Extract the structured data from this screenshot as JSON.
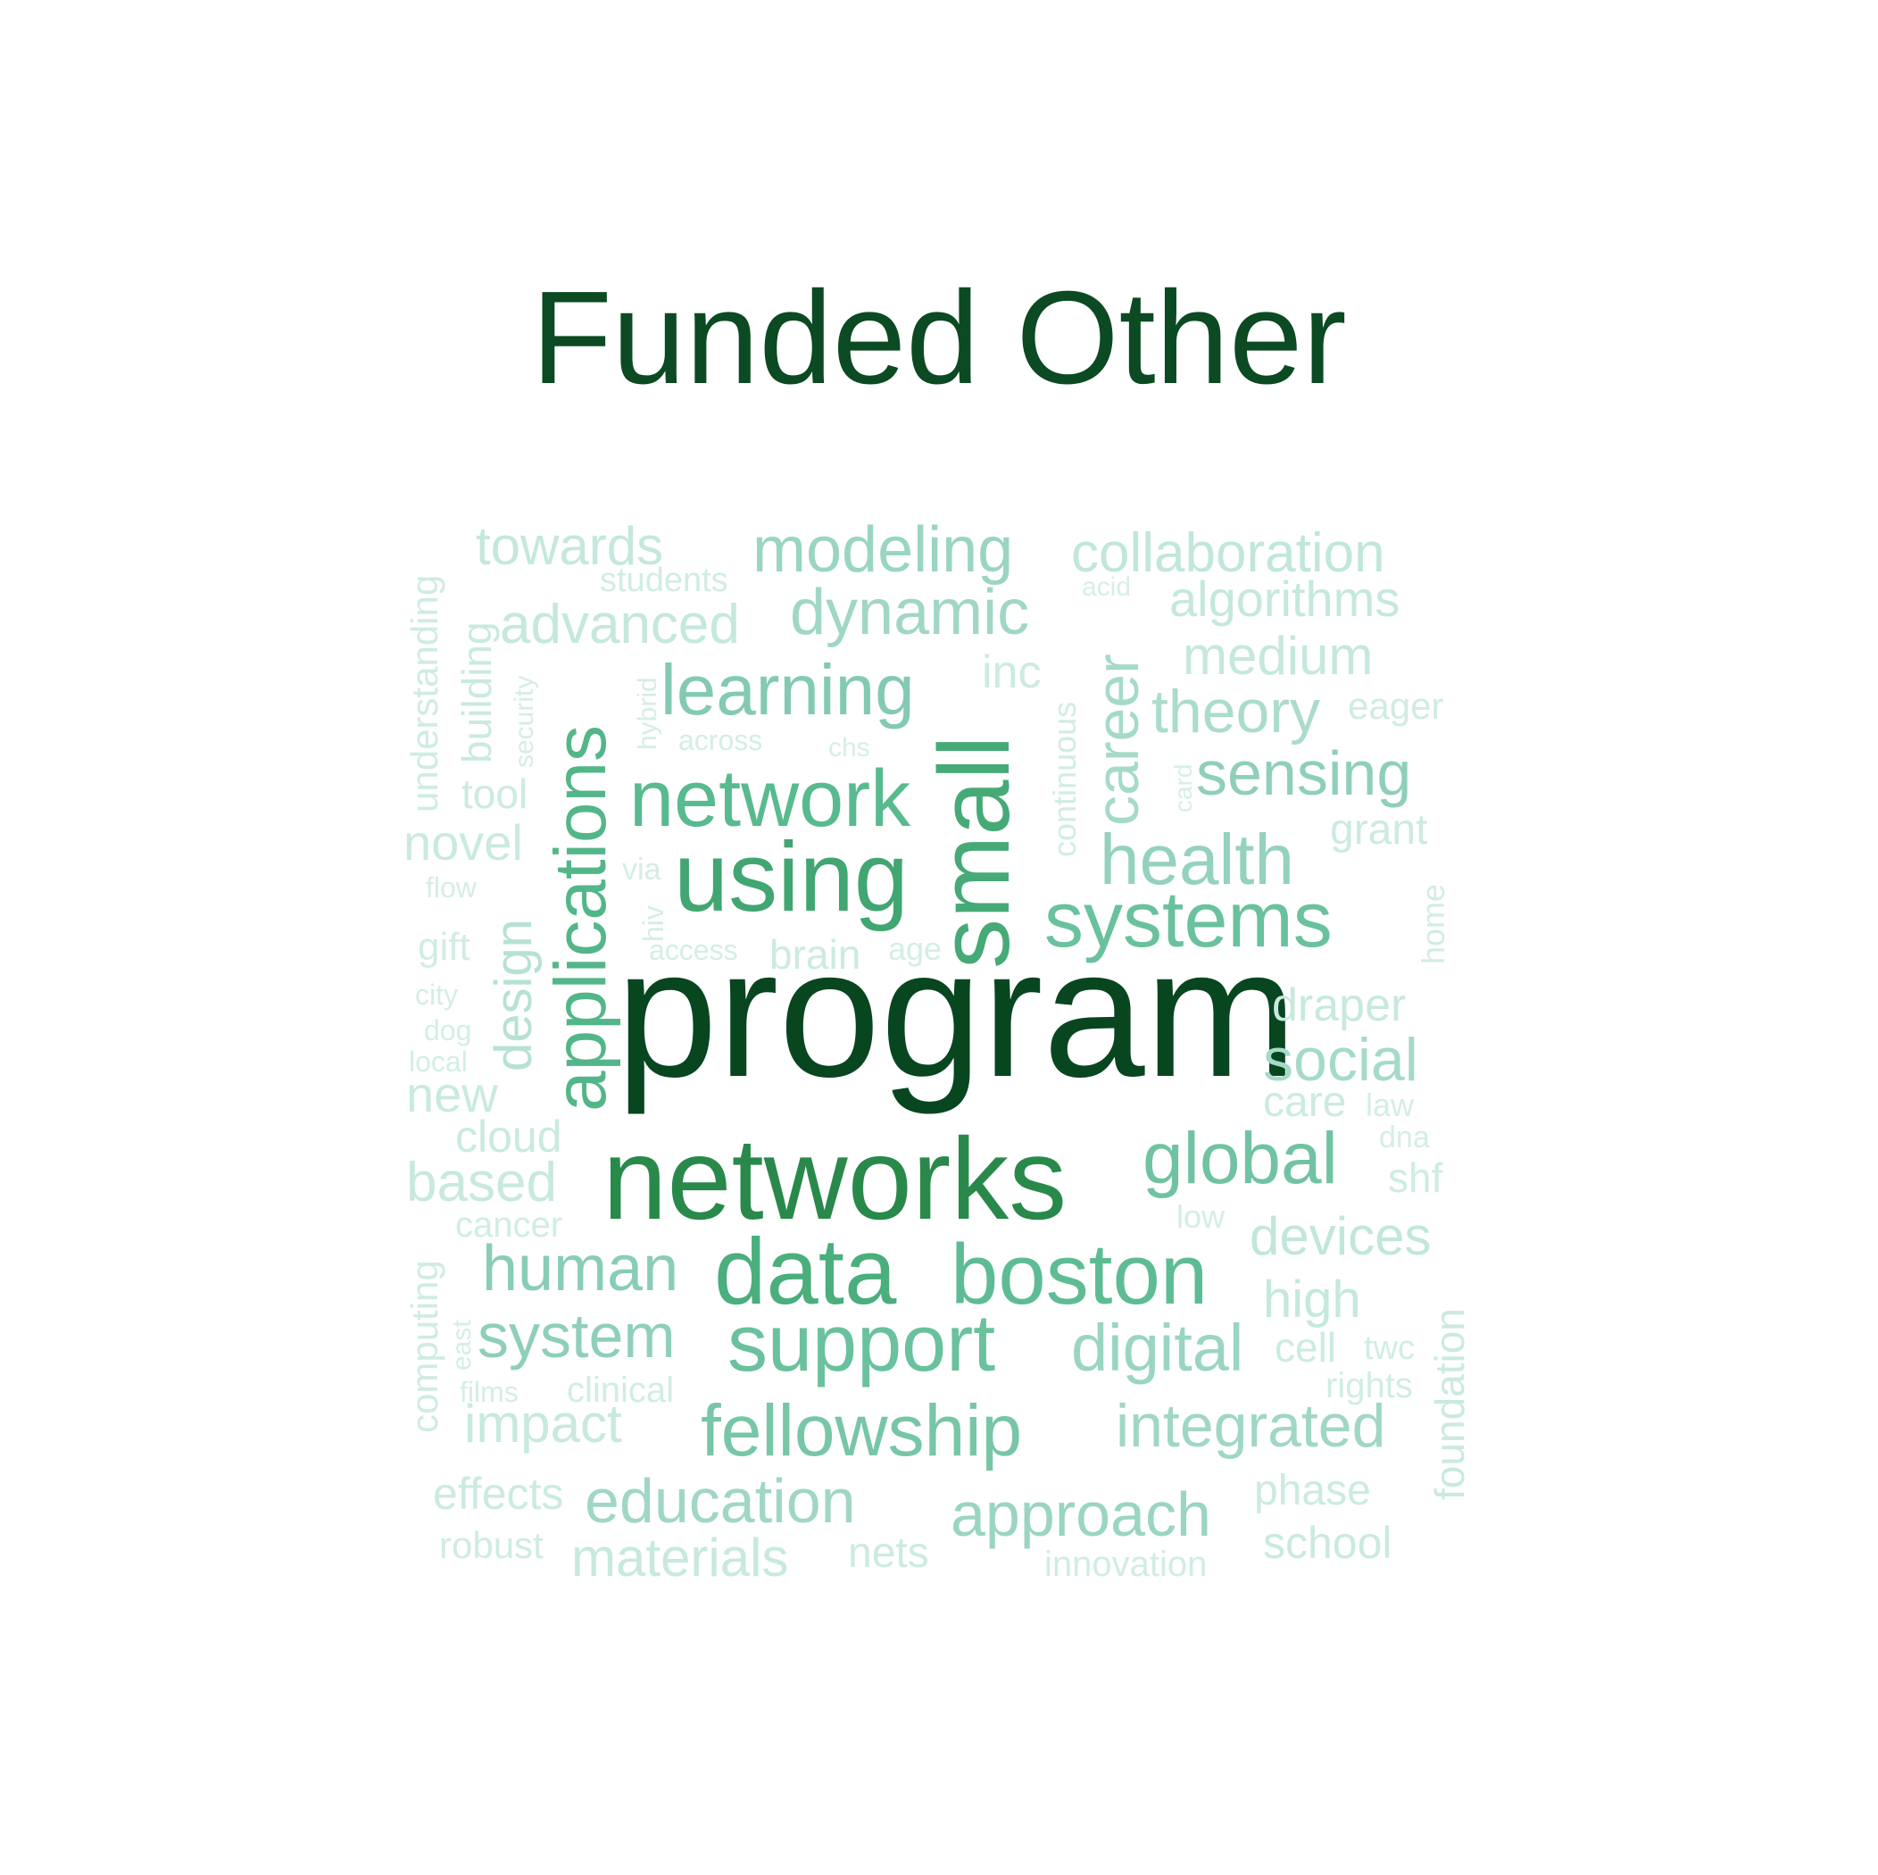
{
  "title": "Funded Other",
  "words": [
    {
      "text": "program",
      "weight": 1.0
    },
    {
      "text": "networks",
      "weight": 0.86
    },
    {
      "text": "using",
      "weight": 0.72
    },
    {
      "text": "small",
      "weight": 0.7
    },
    {
      "text": "data",
      "weight": 0.68
    },
    {
      "text": "applications",
      "weight": 0.64
    },
    {
      "text": "network",
      "weight": 0.62
    },
    {
      "text": "boston",
      "weight": 0.6
    },
    {
      "text": "support",
      "weight": 0.56
    },
    {
      "text": "systems",
      "weight": 0.56
    },
    {
      "text": "global",
      "weight": 0.54
    },
    {
      "text": "fellowship",
      "weight": 0.52
    },
    {
      "text": "learning",
      "weight": 0.48
    },
    {
      "text": "human",
      "weight": 0.46
    },
    {
      "text": "system",
      "weight": 0.44
    },
    {
      "text": "sensing",
      "weight": 0.44
    },
    {
      "text": "health",
      "weight": 0.42
    },
    {
      "text": "digital",
      "weight": 0.4
    },
    {
      "text": "approach",
      "weight": 0.4
    },
    {
      "text": "modeling",
      "weight": 0.4
    },
    {
      "text": "integrated",
      "weight": 0.38
    },
    {
      "text": "dynamic",
      "weight": 0.38
    },
    {
      "text": "education",
      "weight": 0.38
    },
    {
      "text": "career",
      "weight": 0.36
    },
    {
      "text": "social",
      "weight": 0.36
    },
    {
      "text": "theory",
      "weight": 0.34
    },
    {
      "text": "design",
      "weight": 0.3
    },
    {
      "text": "devices",
      "weight": 0.26
    },
    {
      "text": "collaboration",
      "weight": 0.26
    },
    {
      "text": "advanced",
      "weight": 0.24
    },
    {
      "text": "medium",
      "weight": 0.24
    },
    {
      "text": "algorithms",
      "weight": 0.24
    },
    {
      "text": "towards",
      "weight": 0.24
    },
    {
      "text": "high",
      "weight": 0.24
    },
    {
      "text": "impact",
      "weight": 0.22
    },
    {
      "text": "draper",
      "weight": 0.22
    },
    {
      "text": "based",
      "weight": 0.22
    },
    {
      "text": "materials",
      "weight": 0.22
    },
    {
      "text": "school",
      "weight": 0.2
    },
    {
      "text": "novel",
      "weight": 0.2
    },
    {
      "text": "new",
      "weight": 0.2
    },
    {
      "text": "cloud",
      "weight": 0.2
    },
    {
      "text": "building",
      "weight": 0.2
    },
    {
      "text": "foundation",
      "weight": 0.2
    },
    {
      "text": "phase",
      "weight": 0.18
    },
    {
      "text": "grant",
      "weight": 0.18
    },
    {
      "text": "care",
      "weight": 0.18
    },
    {
      "text": "effects",
      "weight": 0.18
    },
    {
      "text": "tool",
      "weight": 0.18
    },
    {
      "text": "inc",
      "weight": 0.18
    },
    {
      "text": "brain",
      "weight": 0.18
    },
    {
      "text": "cell",
      "weight": 0.18
    },
    {
      "text": "nets",
      "weight": 0.18
    },
    {
      "text": "shf",
      "weight": 0.16
    },
    {
      "text": "understanding",
      "weight": 0.16
    },
    {
      "text": "computing",
      "weight": 0.16
    },
    {
      "text": "robust",
      "weight": 0.16
    },
    {
      "text": "eager",
      "weight": 0.16
    },
    {
      "text": "students",
      "weight": 0.14
    },
    {
      "text": "twc",
      "weight": 0.14
    },
    {
      "text": "continuous",
      "weight": 0.14
    },
    {
      "text": "gift",
      "weight": 0.14
    },
    {
      "text": "clinical",
      "weight": 0.14
    },
    {
      "text": "cancer",
      "weight": 0.14
    },
    {
      "text": "rights",
      "weight": 0.14
    },
    {
      "text": "home",
      "weight": 0.14
    },
    {
      "text": "innovation",
      "weight": 0.14
    },
    {
      "text": "dna",
      "weight": 0.12
    },
    {
      "text": "law",
      "weight": 0.12
    },
    {
      "text": "low",
      "weight": 0.12
    },
    {
      "text": "age",
      "weight": 0.12
    },
    {
      "text": "access",
      "weight": 0.12
    },
    {
      "text": "across",
      "weight": 0.12
    },
    {
      "text": "hiv",
      "weight": 0.12
    },
    {
      "text": "via",
      "weight": 0.12
    },
    {
      "text": "hybrid",
      "weight": 0.12
    },
    {
      "text": "security",
      "weight": 0.12
    },
    {
      "text": "films",
      "weight": 0.12
    },
    {
      "text": "east",
      "weight": 0.12
    },
    {
      "text": "local",
      "weight": 0.12
    },
    {
      "text": "dog",
      "weight": 0.12
    },
    {
      "text": "city",
      "weight": 0.12
    },
    {
      "text": "flow",
      "weight": 0.12
    },
    {
      "text": "card",
      "weight": 0.1
    },
    {
      "text": "chs",
      "weight": 0.1
    },
    {
      "text": "acid",
      "weight": 0.1
    }
  ]
}
